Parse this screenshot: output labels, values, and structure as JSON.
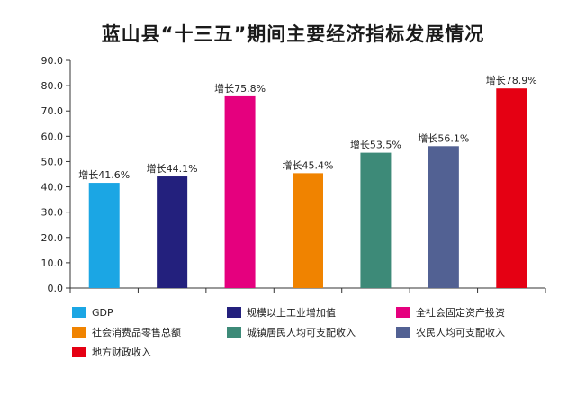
{
  "chart_data": {
    "type": "bar",
    "title": "蓝山县“十三五”期间主要经济指标发展情况",
    "xlabel": "",
    "ylabel": "",
    "ylim": [
      0,
      90
    ],
    "yticks": [
      "0.0",
      "10.0",
      "20.0",
      "30.0",
      "40.0",
      "50.0",
      "60.0",
      "70.0",
      "80.0",
      "90.0"
    ],
    "grid": false,
    "legend_position": "bottom",
    "categories": [
      "GDP",
      "规模以上工业增加值",
      "全社会固定资产投资",
      "社会消费品零售总额",
      "城镇居民人均可支配收入",
      "农民人均可支配收入",
      "地方财政收入"
    ],
    "values": [
      41.6,
      44.1,
      75.8,
      45.4,
      53.5,
      56.1,
      78.9
    ],
    "data_labels": [
      "增长41.6%",
      "增长44.1%",
      "增长75.8%",
      "增长45.4%",
      "增长53.5%",
      "增长56.1%",
      "增长78.9%"
    ],
    "colors": [
      "#1ba6e4",
      "#23207d",
      "#e5007e",
      "#f08300",
      "#3d8a78",
      "#526193",
      "#e50013"
    ]
  }
}
